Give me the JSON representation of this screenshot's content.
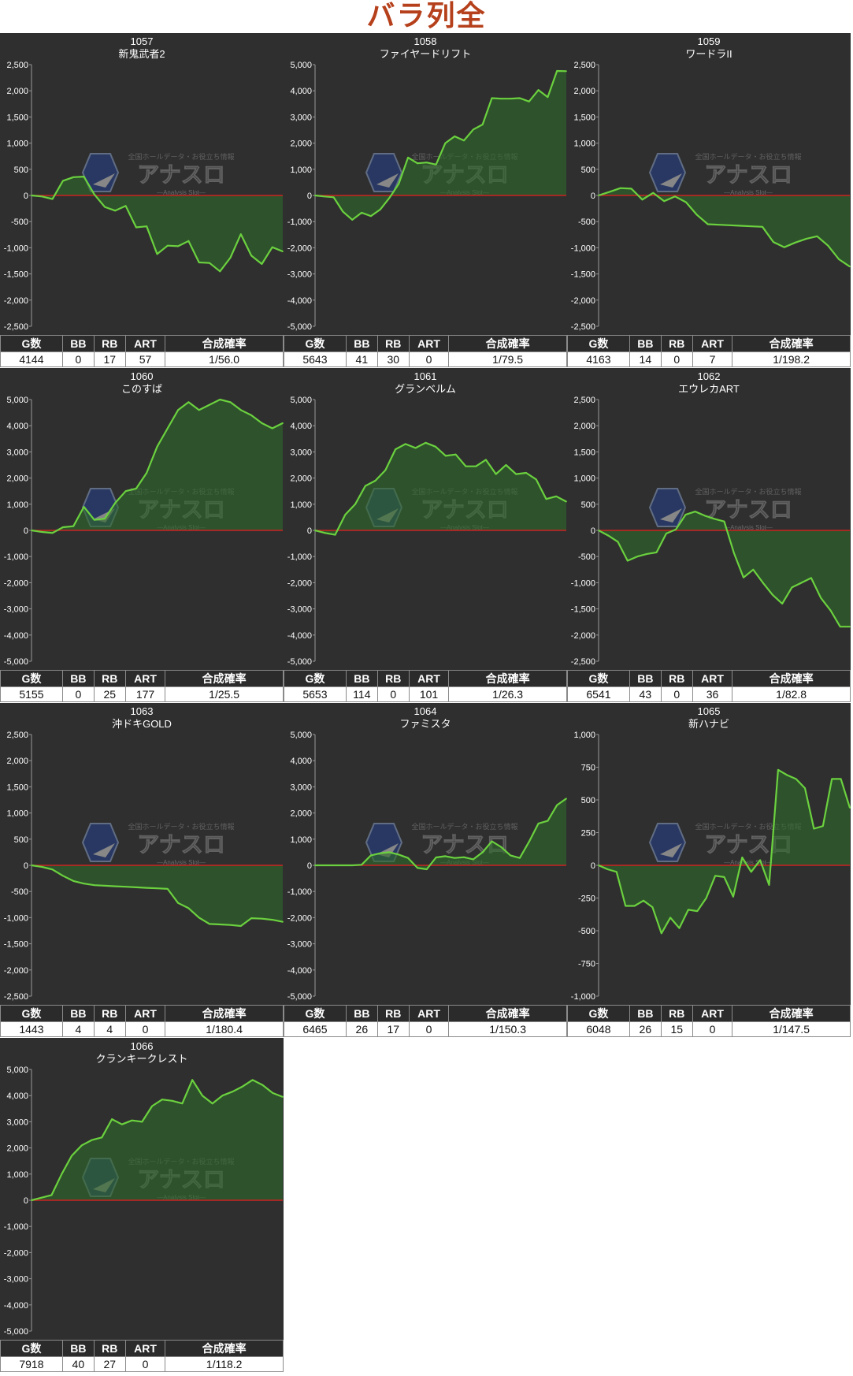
{
  "page": {
    "title": "バラ列全"
  },
  "watermark": {
    "main": "アナスロ",
    "sub": "—Analysis Slot—",
    "top": "全国ホールデータ・お役立ち情報"
  },
  "colors": {
    "line": "#6bd13f",
    "fill": "#2f6b2a",
    "zero": "#cc2222",
    "bg": "#2f2f2f"
  },
  "table_headers": [
    "G数",
    "BB",
    "RB",
    "ART",
    "合成確率"
  ],
  "panels": [
    {
      "number": "1057",
      "name": "新鬼武者2",
      "stats": {
        "g": "4144",
        "bb": "0",
        "rb": "17",
        "art": "57",
        "prob": "1/56.0"
      }
    },
    {
      "number": "1058",
      "name": "ファイヤードリフト",
      "stats": {
        "g": "5643",
        "bb": "41",
        "rb": "30",
        "art": "0",
        "prob": "1/79.5"
      }
    },
    {
      "number": "1059",
      "name": "ワードラII",
      "stats": {
        "g": "4163",
        "bb": "14",
        "rb": "0",
        "art": "7",
        "prob": "1/198.2"
      }
    },
    {
      "number": "1060",
      "name": "このすば",
      "stats": {
        "g": "5155",
        "bb": "0",
        "rb": "25",
        "art": "177",
        "prob": "1/25.5"
      }
    },
    {
      "number": "1061",
      "name": "グランベルム",
      "stats": {
        "g": "5653",
        "bb": "114",
        "rb": "0",
        "art": "101",
        "prob": "1/26.3"
      }
    },
    {
      "number": "1062",
      "name": "エウレカART",
      "stats": {
        "g": "6541",
        "bb": "43",
        "rb": "0",
        "art": "36",
        "prob": "1/82.8"
      }
    },
    {
      "number": "1063",
      "name": "沖ドキGOLD",
      "stats": {
        "g": "1443",
        "bb": "4",
        "rb": "4",
        "art": "0",
        "prob": "1/180.4"
      }
    },
    {
      "number": "1064",
      "name": "ファミスタ",
      "stats": {
        "g": "6465",
        "bb": "26",
        "rb": "17",
        "art": "0",
        "prob": "1/150.3"
      }
    },
    {
      "number": "1065",
      "name": "新ハナビ",
      "stats": {
        "g": "6048",
        "bb": "26",
        "rb": "15",
        "art": "0",
        "prob": "1/147.5"
      }
    },
    {
      "number": "1066",
      "name": "クランキークレスト",
      "stats": {
        "g": "7918",
        "bb": "40",
        "rb": "27",
        "art": "0",
        "prob": "1/118.2"
      }
    }
  ],
  "chart_data": [
    {
      "type": "area",
      "title": "1057 新鬼武者2",
      "ylim": [
        -2500,
        2500
      ],
      "yticks": [
        "2,500",
        "2,000",
        "1,500",
        "1,000",
        "500",
        "0",
        "-500",
        "-1,000",
        "-1,500",
        "-2,000",
        "-2,500"
      ],
      "grid": false,
      "values": [
        0,
        -20,
        -70,
        280,
        350,
        360,
        20,
        -220,
        -290,
        -200,
        -610,
        -590,
        -1120,
        -960,
        -970,
        -870,
        -1280,
        -1290,
        -1450,
        -1190,
        -740,
        -1150,
        -1310,
        -990,
        -1070
      ]
    },
    {
      "type": "area",
      "title": "1058 ファイヤードリフト",
      "ylim": [
        -5000,
        5000
      ],
      "yticks": [
        "5,000",
        "4,000",
        "3,000",
        "2,000",
        "1,000",
        "0",
        "-1,000",
        "-2,000",
        "-3,000",
        "-4,000",
        "-5,000"
      ],
      "grid": false,
      "values": [
        0,
        -40,
        -70,
        -620,
        -930,
        -660,
        -790,
        -540,
        -90,
        450,
        1450,
        1230,
        1260,
        1180,
        2000,
        2260,
        2100,
        2520,
        2710,
        3720,
        3700,
        3700,
        3720,
        3590,
        4030,
        3760,
        4760,
        4750
      ]
    },
    {
      "type": "area",
      "title": "1059 ワードラII",
      "ylim": [
        -2500,
        2500
      ],
      "yticks": [
        "2,500",
        "2,000",
        "1,500",
        "1,000",
        "500",
        "0",
        "-500",
        "-1,000",
        "-1,500",
        "-2,000",
        "-2,500"
      ],
      "grid": false,
      "values": [
        0,
        70,
        140,
        130,
        -80,
        50,
        -110,
        -20,
        -130,
        -370,
        -550,
        -560,
        -570,
        -580,
        -590,
        -600,
        -890,
        -990,
        -900,
        -830,
        -780,
        -960,
        -1220,
        -1360
      ]
    },
    {
      "type": "area",
      "title": "1060 このすば",
      "ylim": [
        -5000,
        5000
      ],
      "yticks": [
        "5,000",
        "4,000",
        "3,000",
        "2,000",
        "1,000",
        "0",
        "-1,000",
        "-2,000",
        "-3,000",
        "-4,000",
        "-5,000"
      ],
      "grid": false,
      "values": [
        0,
        -60,
        -100,
        120,
        160,
        900,
        400,
        450,
        1050,
        1500,
        1600,
        2200,
        3200,
        3900,
        4600,
        4900,
        4600,
        4800,
        5000,
        4900,
        4600,
        4400,
        4100,
        3900,
        4100
      ]
    },
    {
      "type": "area",
      "title": "1061 グランベルム",
      "ylim": [
        -5000,
        5000
      ],
      "yticks": [
        "5,000",
        "4,000",
        "3,000",
        "2,000",
        "1,000",
        "0",
        "-1,000",
        "-2,000",
        "-3,000",
        "-4,000",
        "-5,000"
      ],
      "grid": false,
      "values": [
        0,
        -100,
        -170,
        600,
        1000,
        1700,
        1900,
        2300,
        3100,
        3300,
        3150,
        3350,
        3200,
        2850,
        2900,
        2450,
        2450,
        2700,
        2150,
        2500,
        2150,
        2200,
        1950,
        1200,
        1300,
        1100
      ]
    },
    {
      "type": "area",
      "title": "1062 エウレカART",
      "ylim": [
        -2500,
        2500
      ],
      "yticks": [
        "2,500",
        "2,000",
        "1,500",
        "1,000",
        "500",
        "0",
        "-500",
        "-1,000",
        "-1,500",
        "-2,000",
        "-2,500"
      ],
      "grid": false,
      "values": [
        0,
        -100,
        -220,
        -580,
        -500,
        -450,
        -420,
        -60,
        20,
        300,
        360,
        280,
        220,
        170,
        -430,
        -900,
        -750,
        -1000,
        -1230,
        -1400,
        -1090,
        -1000,
        -910,
        -1290,
        -1530,
        -1840,
        -1840
      ]
    },
    {
      "type": "area",
      "title": "1063 沖ドキGOLD",
      "ylim": [
        -2500,
        2500
      ],
      "yticks": [
        "2,500",
        "2,000",
        "1,500",
        "1,000",
        "500",
        "0",
        "-500",
        "-1,000",
        "-1,500",
        "-2,000",
        "-2,500"
      ],
      "grid": false,
      "values": [
        0,
        -30,
        -80,
        -200,
        -300,
        -350,
        -380,
        -390,
        -400,
        -410,
        -420,
        -430,
        -440,
        -450,
        -720,
        -820,
        -1000,
        -1120,
        -1130,
        -1140,
        -1160,
        -1010,
        -1020,
        -1040,
        -1080
      ]
    },
    {
      "type": "area",
      "title": "1064 ファミスタ",
      "ylim": [
        -5000,
        5000
      ],
      "yticks": [
        "5,000",
        "4,000",
        "3,000",
        "2,000",
        "1,000",
        "0",
        "-1,000",
        "-2,000",
        "-3,000",
        "-4,000",
        "-5,000"
      ],
      "grid": false,
      "values": [
        0,
        0,
        0,
        0,
        0,
        20,
        380,
        460,
        500,
        410,
        280,
        -100,
        -150,
        300,
        350,
        280,
        310,
        230,
        500,
        920,
        700,
        380,
        280,
        900,
        1600,
        1700,
        2300,
        2550
      ]
    },
    {
      "type": "area",
      "title": "1065 新ハナビ",
      "ylim": [
        -1000,
        1000
      ],
      "yticks": [
        "1,000",
        "750",
        "500",
        "250",
        "0",
        "-250",
        "-500",
        "-750",
        "-1,000"
      ],
      "grid": false,
      "values": [
        0,
        -30,
        -50,
        -310,
        -310,
        -270,
        -320,
        -520,
        -400,
        -480,
        -340,
        -350,
        -250,
        -80,
        -90,
        -240,
        60,
        -50,
        40,
        -150,
        730,
        690,
        660,
        590,
        280,
        300,
        660,
        660,
        440
      ]
    },
    {
      "type": "area",
      "title": "1066 クランキークレスト",
      "ylim": [
        -5000,
        5000
      ],
      "yticks": [
        "5,000",
        "4,000",
        "3,000",
        "2,000",
        "1,000",
        "0",
        "-1,000",
        "-2,000",
        "-3,000",
        "-4,000",
        "-5,000"
      ],
      "grid": false,
      "values": [
        0,
        100,
        200,
        1000,
        1700,
        2100,
        2300,
        2400,
        3100,
        2900,
        3050,
        3000,
        3600,
        3850,
        3800,
        3700,
        4600,
        4000,
        3700,
        4000,
        4150,
        4350,
        4600,
        4400,
        4100,
        3950
      ]
    }
  ]
}
